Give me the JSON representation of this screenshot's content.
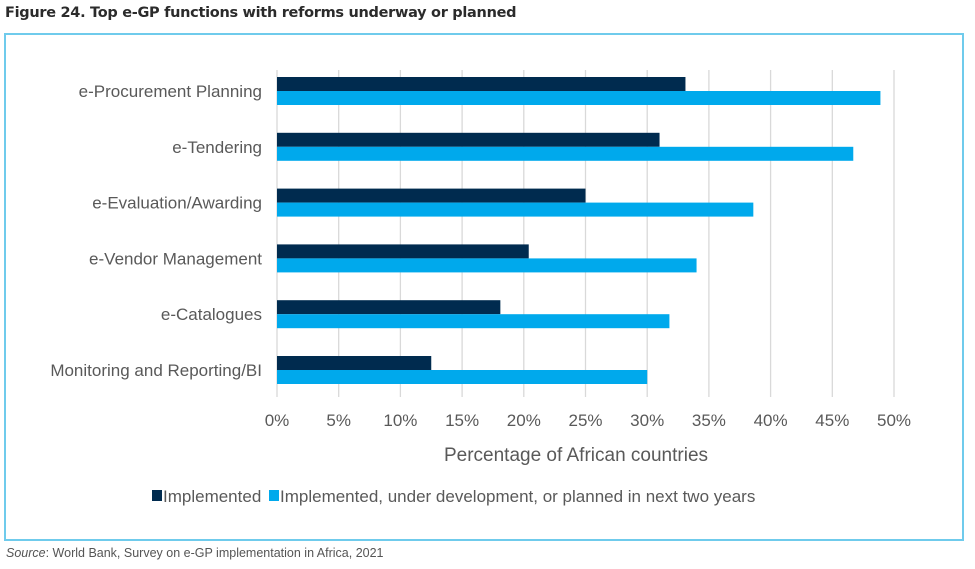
{
  "figure_title": "Figure 24. Top e-GP functions with reforms underway or planned",
  "source_label": "Source",
  "source_text": ": World Bank, Survey on e-GP implementation in Africa, 2021",
  "colors": {
    "implemented": "#002b4f",
    "planned": "#00a9ec",
    "frame": "#6fcbec",
    "grid": "#d9d9d9",
    "text": "#595959"
  },
  "chart_data": {
    "type": "bar",
    "orientation": "horizontal",
    "title": "Figure 24. Top e-GP functions with reforms underway or planned",
    "categories": [
      "e-Procurement Planning",
      "e-Tendering",
      "e-Evaluation/Awarding",
      "e-Vendor Management",
      "e-Catalogues",
      "Monitoring and Reporting/BI"
    ],
    "series": [
      {
        "name": "Implemented",
        "values": [
          33.1,
          31.0,
          25.0,
          20.4,
          18.1,
          12.5
        ]
      },
      {
        "name": "Implemented, under development, or planned in next two years",
        "values": [
          48.9,
          46.7,
          38.6,
          34.0,
          31.8,
          30.0
        ]
      }
    ],
    "xlabel": "Percentage of African countries",
    "ylabel": "",
    "xlim": [
      0,
      50
    ],
    "x_ticks": [
      "0%",
      "5%",
      "10%",
      "15%",
      "20%",
      "25%",
      "30%",
      "35%",
      "40%",
      "45%",
      "50%"
    ],
    "grid": "vertical",
    "legend_position": "bottom"
  }
}
